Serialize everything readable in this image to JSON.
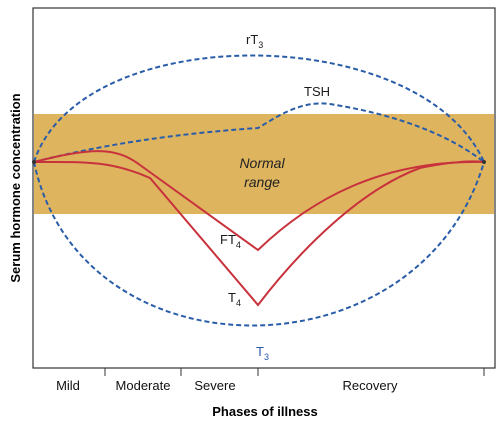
{
  "axes": {
    "y_label": "Serum hormone concentration",
    "x_label": "Phases of illness"
  },
  "band": {
    "label_line1": "Normal",
    "label_line2": "range",
    "color": "#deb45f"
  },
  "phases": [
    "Mild",
    "Moderate",
    "Severe",
    "Recovery"
  ],
  "curves": {
    "rT3": {
      "base": "rT",
      "sub": "3",
      "color": "#2a5da8"
    },
    "TSH": {
      "label": "TSH",
      "color": "#2a5da8"
    },
    "FT4": {
      "base": "FT",
      "sub": "4",
      "color": "#c8323c"
    },
    "T4": {
      "base": "T",
      "sub": "4",
      "color": "#c8323c"
    },
    "T3": {
      "base": "T",
      "sub": "3",
      "color": "#2a5da8"
    }
  }
}
